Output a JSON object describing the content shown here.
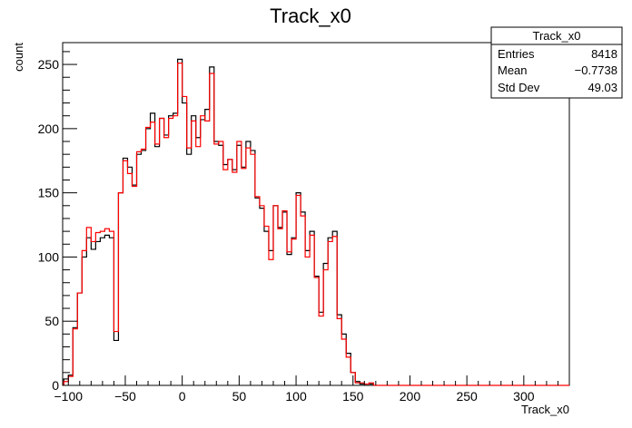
{
  "chart_data": {
    "type": "histogram",
    "title": "Track_x0",
    "xlabel": "Track_x0",
    "ylabel": "count",
    "xlim": [
      -105,
      340
    ],
    "ylim": [
      0,
      267
    ],
    "x_ticks": [
      -100,
      -50,
      0,
      50,
      100,
      150,
      200,
      250,
      300
    ],
    "y_ticks": [
      0,
      50,
      100,
      150,
      200,
      250
    ],
    "grid": false,
    "bin_start": -104,
    "bin_width": 4,
    "colors": {
      "black_series": "#000000",
      "red_series": "#ff0000"
    },
    "series": [
      {
        "color": "black",
        "values": [
          5,
          8,
          45,
          72,
          100,
          115,
          106,
          112,
          115,
          117,
          115,
          35,
          150,
          177,
          170,
          156,
          180,
          183,
          200,
          212,
          186,
          208,
          195,
          210,
          212,
          254,
          220,
          180,
          210,
          193,
          207,
          215,
          248,
          190,
          187,
          172,
          176,
          168,
          187,
          170,
          190,
          183,
          146,
          138,
          120,
          105,
          140,
          123,
          135,
          102,
          115,
          150,
          135,
          105,
          120,
          85,
          57,
          95,
          115,
          120,
          55,
          40,
          25,
          10,
          3,
          1,
          1,
          1
        ]
      },
      {
        "color": "red",
        "values": [
          3,
          7,
          44,
          72,
          105,
          123,
          112,
          119,
          120,
          122,
          120,
          42,
          150,
          175,
          165,
          155,
          182,
          184,
          201,
          205,
          188,
          208,
          193,
          208,
          210,
          251,
          225,
          185,
          206,
          186,
          210,
          206,
          243,
          188,
          190,
          168,
          176,
          166,
          190,
          169,
          185,
          180,
          147,
          140,
          124,
          98,
          140,
          122,
          136,
          104,
          114,
          148,
          132,
          100,
          117,
          84,
          54,
          90,
          112,
          116,
          52,
          36,
          22,
          10,
          2,
          2,
          1,
          2
        ]
      }
    ],
    "stats_box": {
      "title": "Track_x0",
      "rows": [
        {
          "label": "Entries",
          "value": "8418"
        },
        {
          "label": "Mean",
          "value": "−0.7738"
        },
        {
          "label": "Std Dev",
          "value": "49.03"
        }
      ]
    }
  }
}
